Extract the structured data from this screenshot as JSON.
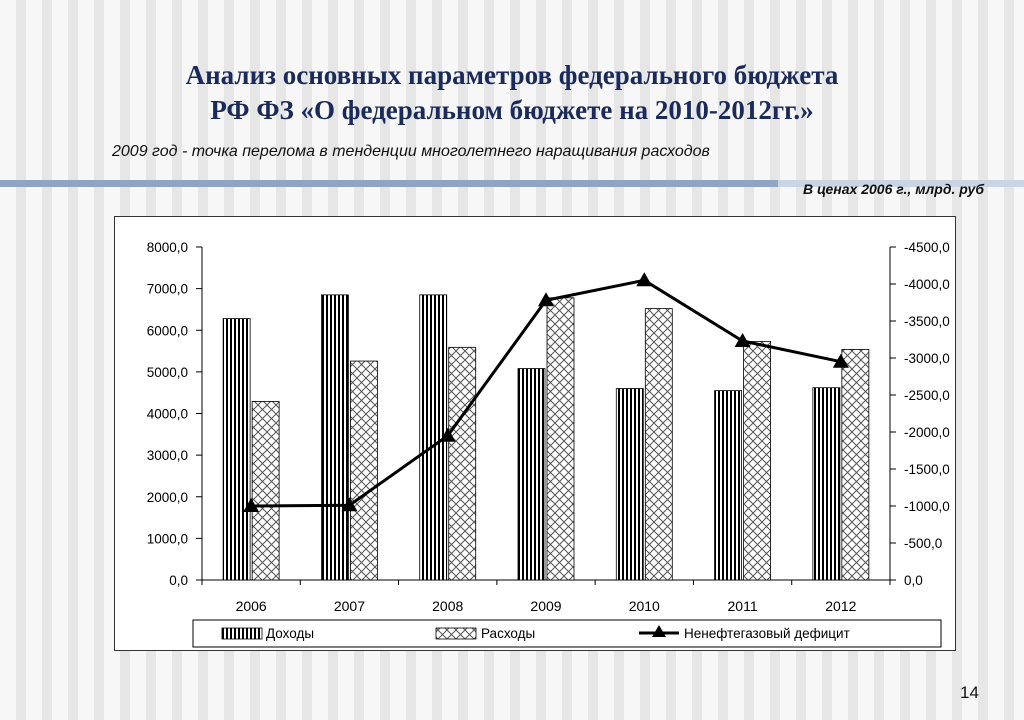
{
  "slide": {
    "title_line1": "Анализ основных параметров федерального бюджета",
    "title_line2": "РФ ФЗ «О федеральном бюджете на 2010-2012гг.»",
    "subtitle": "2009 год - точка перелома в тенденции многолетнего наращивания расходов",
    "units_note": "В ценах 2006 г., млрд. руб",
    "page_number": "14"
  },
  "colors": {
    "title": "#1a2a5a",
    "rule_dark": "#8fa5c4",
    "rule_light": "#c9d4e4",
    "line": "#000000"
  },
  "chart_data": {
    "type": "bar",
    "categories": [
      "2006",
      "2007",
      "2008",
      "2009",
      "2010",
      "2011",
      "2012"
    ],
    "series": [
      {
        "name": "Доходы",
        "type": "bar",
        "axis": "left",
        "pattern": "vertical-stripes",
        "values": [
          6280,
          6850,
          6850,
          5080,
          4600,
          4550,
          4620
        ]
      },
      {
        "name": "Расходы",
        "type": "bar",
        "axis": "left",
        "pattern": "crosshatch",
        "values": [
          4290,
          5260,
          5590,
          6780,
          6520,
          5730,
          5540
        ]
      },
      {
        "name": "Ненефтегазовый дефицит",
        "type": "line",
        "axis": "right",
        "marker": "triangle",
        "values": [
          -1000,
          -1010,
          -1950,
          -3780,
          -4050,
          -3230,
          -2950
        ]
      }
    ],
    "y_left": {
      "ylim": [
        0,
        8000
      ],
      "ticks": [
        "0,0",
        "1000,0",
        "2000,0",
        "3000,0",
        "4000,0",
        "5000,0",
        "6000,0",
        "7000,0",
        "8000,0"
      ]
    },
    "y_right": {
      "ylim": [
        0,
        -4500
      ],
      "ticks": [
        "0,0",
        "-500,0",
        "-1000,0",
        "-1500,0",
        "-2000,0",
        "-2500,0",
        "-3000,0",
        "-3500,0",
        "-4000,0",
        "-4500,0"
      ]
    },
    "grid": false,
    "legend_position": "bottom"
  }
}
